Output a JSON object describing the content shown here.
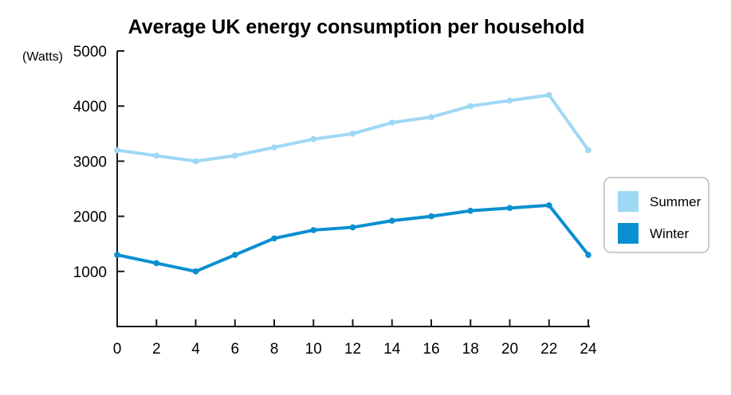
{
  "chart_data": {
    "type": "line",
    "title": "Average UK energy consumption per household",
    "ylabel": "(Watts)",
    "xlabel": "",
    "x": [
      0,
      2,
      4,
      6,
      8,
      10,
      12,
      14,
      16,
      18,
      20,
      22,
      24
    ],
    "xlim": [
      0,
      24
    ],
    "ylim": [
      0,
      5000
    ],
    "yticks": [
      1000,
      2000,
      3000,
      4000,
      5000
    ],
    "xticks": [
      0,
      2,
      4,
      6,
      8,
      10,
      12,
      14,
      16,
      18,
      20,
      22,
      24
    ],
    "grid": false,
    "legend_position": "right",
    "series": [
      {
        "name": "Summer",
        "color": "#9ed8f5",
        "values": [
          3200,
          3100,
          3000,
          3100,
          3250,
          3400,
          3500,
          3700,
          3800,
          4000,
          4100,
          4200,
          3200
        ]
      },
      {
        "name": "Winter",
        "color": "#0a8fd0",
        "values": [
          1300,
          1150,
          1000,
          1300,
          1600,
          1750,
          1800,
          1920,
          2000,
          2100,
          2150,
          2200,
          1300
        ]
      }
    ]
  }
}
